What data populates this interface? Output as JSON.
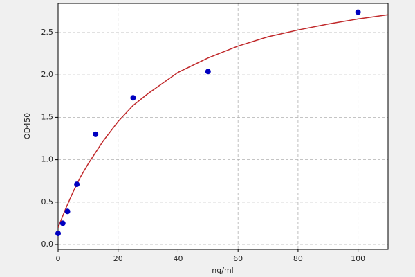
{
  "chart_data": {
    "type": "scatter",
    "xlabel": "ng/ml",
    "ylabel": "OD450",
    "xlim": [
      0,
      110
    ],
    "xticks": [
      0,
      20,
      40,
      60,
      80,
      100
    ],
    "ylim": [
      -0.057,
      2.843
    ],
    "yticks": [
      {
        "value": 0,
        "label": "0.0"
      },
      {
        "value": 0.5,
        "label": "0.5"
      },
      {
        "value": 1,
        "label": "1.0"
      },
      {
        "value": 1.5,
        "label": "1.5"
      },
      {
        "value": 2,
        "label": "2.0"
      },
      {
        "value": 2.5,
        "label": "2.5"
      }
    ],
    "grid": true,
    "series": [
      {
        "style": "markers",
        "color": "#0000c0",
        "x": [
          0,
          1.56,
          3.125,
          6.25,
          12.5,
          25,
          50,
          100
        ],
        "y": [
          0.13,
          0.25,
          0.39,
          0.71,
          1.3,
          1.73,
          2.04,
          2.74
        ]
      },
      {
        "style": "line",
        "color": "#c0282a",
        "x": [
          0,
          2.5,
          5,
          7.5,
          10,
          15,
          20,
          25,
          30,
          40,
          50,
          60,
          70,
          80,
          90,
          100,
          110
        ],
        "y": [
          0.2,
          0.42,
          0.62,
          0.8,
          0.95,
          1.22,
          1.45,
          1.64,
          1.78,
          2.03,
          2.2,
          2.34,
          2.45,
          2.53,
          2.6,
          2.66,
          2.71
        ]
      }
    ]
  }
}
